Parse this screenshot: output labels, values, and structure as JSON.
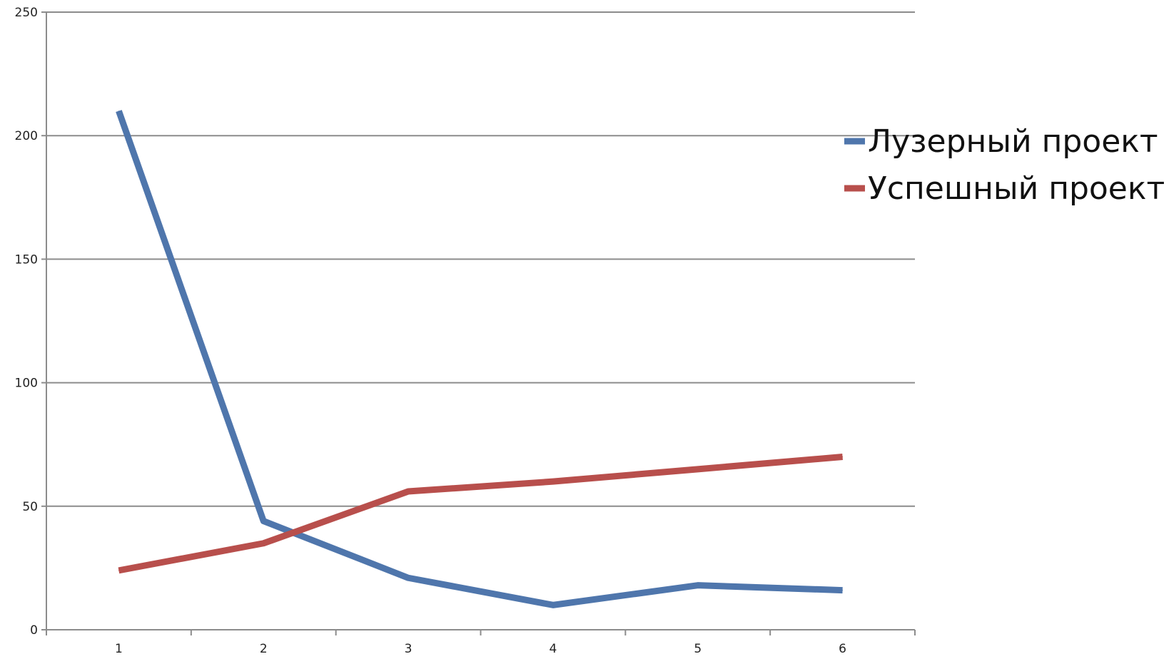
{
  "chart_data": {
    "type": "line",
    "categories": [
      "1",
      "2",
      "3",
      "4",
      "5",
      "6"
    ],
    "series": [
      {
        "name": "Лузерный проект",
        "color": "#4F76AC",
        "values": [
          210,
          44,
          21,
          10,
          18,
          16
        ]
      },
      {
        "name": "Успешный проект",
        "color": "#B84F4C",
        "values": [
          24,
          35,
          56,
          60,
          65,
          70
        ]
      }
    ],
    "y_ticks": [
      "0",
      "50",
      "100",
      "150",
      "200",
      "250"
    ],
    "ylim": [
      0,
      250
    ],
    "grid": true,
    "legend_position": "right",
    "title": "",
    "xlabel": "",
    "ylabel": ""
  }
}
